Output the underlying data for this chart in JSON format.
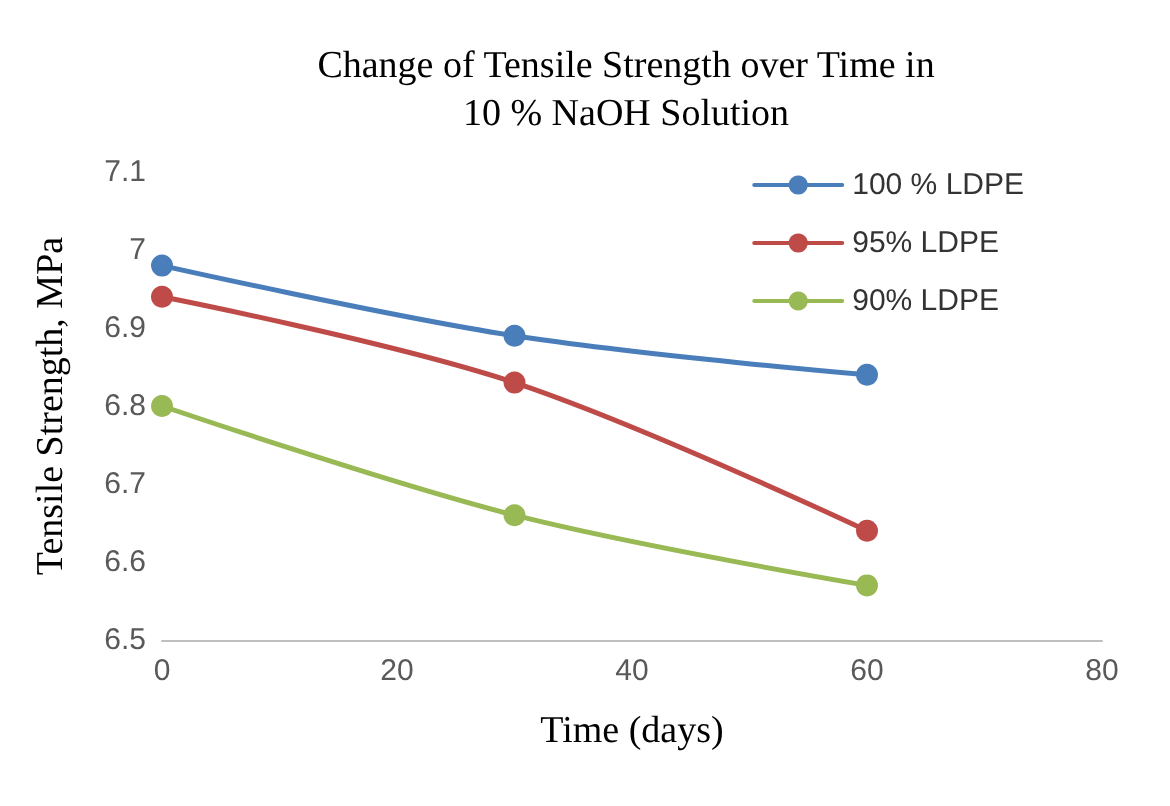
{
  "chart_data": {
    "type": "line",
    "title": "Change of Tensile Strength over Time in\n10 % NaOH Solution",
    "xlabel": "Time (days)",
    "ylabel": "Tensile Strength, MPa",
    "x": [
      0,
      30,
      60
    ],
    "series": [
      {
        "name": "100 % LDPE",
        "color": "#4a7ebb",
        "values": [
          6.98,
          6.89,
          6.84
        ]
      },
      {
        "name": "95% LDPE",
        "color": "#be4b48",
        "values": [
          6.94,
          6.83,
          6.64
        ]
      },
      {
        "name": "90% LDPE",
        "color": "#98b954",
        "values": [
          6.8,
          6.66,
          6.57
        ]
      }
    ],
    "xlim": [
      0,
      80
    ],
    "xticks": [
      0,
      20,
      40,
      60,
      80
    ],
    "ylim": [
      6.5,
      7.1
    ],
    "yticks": [
      6.5,
      6.6,
      6.7,
      6.8,
      6.9,
      7,
      7.1
    ],
    "grid": false,
    "legend": "top right",
    "marker": "circle",
    "line_style": "solid"
  }
}
